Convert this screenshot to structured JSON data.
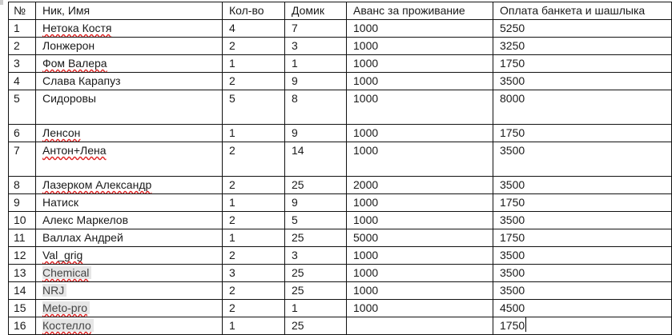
{
  "table": {
    "headers": [
      "№",
      "Ник, Имя",
      "Кол-во",
      "Домик",
      "Аванс за проживание",
      "Оплата банкета и шашлыка"
    ],
    "rows": [
      {
        "num": "1",
        "name": "Нетока Костя",
        "count": "4",
        "house": "7",
        "advance": "1000",
        "payment": "5250",
        "spell": true
      },
      {
        "num": "2",
        "name": "Лонжерон",
        "count": "2",
        "house": "3",
        "advance": "1000",
        "payment": "3250"
      },
      {
        "num": "3",
        "name": "Фом Валера",
        "count": "1",
        "house": "1",
        "advance": "1000",
        "payment": "1750",
        "spell": true
      },
      {
        "num": "4",
        "name": "Слава Карапуз",
        "count": "2",
        "house": "9",
        "advance": "1000",
        "payment": "3500"
      },
      {
        "num": "5",
        "name": "Сидоровы",
        "count": "5",
        "house": "8",
        "advance": "1000",
        "payment": "8000",
        "tall": true
      },
      {
        "num": "6",
        "name": "Ленсон",
        "count": "1",
        "house": "9",
        "advance": "1000",
        "payment": "1750",
        "spell": true
      },
      {
        "num": "7",
        "name": "Антон+Лена",
        "count": "2",
        "house": "14",
        "advance": "1000",
        "payment": "3500",
        "spell": true,
        "tall": true
      },
      {
        "num": "8",
        "name": "Лазерком Александр",
        "count": "2",
        "house": "25",
        "advance": "2000",
        "payment": "3500",
        "spell": true
      },
      {
        "num": "9",
        "name": "Натиск",
        "count": "1",
        "house": "9",
        "advance": "1000",
        "payment": "1750"
      },
      {
        "num": "10",
        "name": "Алекс Маркелов",
        "count": "2",
        "house": "5",
        "advance": "1000",
        "payment": "3500"
      },
      {
        "num": "11",
        "name": "Валлах Андрей",
        "count": "1",
        "house": "25",
        "advance": "5000",
        "payment": "1750"
      },
      {
        "num": "12",
        "name": "Val_grig",
        "count": "2",
        "house": "3",
        "advance": "1000",
        "payment": "3500",
        "spell": true
      },
      {
        "num": "13",
        "name": "Chemical",
        "count": "3",
        "house": "25",
        "advance": "1000",
        "payment": "3500",
        "spell": true,
        "highlight": true
      },
      {
        "num": "14",
        "name": "NRJ",
        "count": "2",
        "house": "25",
        "advance": "1000",
        "payment": "3500",
        "highlight": true
      },
      {
        "num": "15",
        "name": "Meto-pro",
        "count": "2",
        "house": "1",
        "advance": "1000",
        "payment": "4500",
        "spell": true,
        "highlight": true
      },
      {
        "num": "16",
        "name": "Костелло",
        "count": "1",
        "house": "25",
        "advance": "",
        "payment": "1750",
        "spell": true,
        "highlight": true,
        "caret": true
      }
    ]
  },
  "colors": {
    "border": "#111111",
    "spellcheck": "#dd2222",
    "highlight": "#e6e6e6"
  }
}
